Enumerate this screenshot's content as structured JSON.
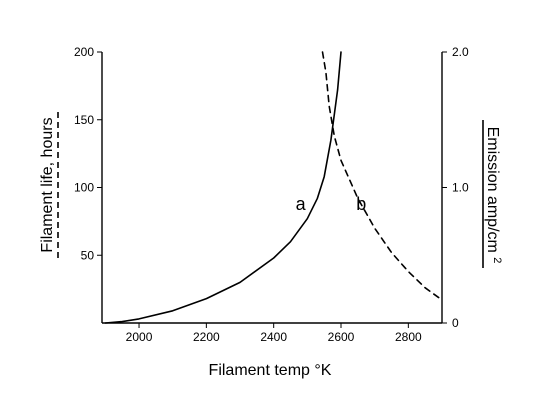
{
  "chart_data": {
    "type": "line",
    "title": "",
    "xlabel": "Filament temp °K",
    "ylabel_left": "Filament life, hours",
    "ylabel_right": "Emission amp/cm",
    "ylabel_right_superscript": "2",
    "xlim": [
      1890,
      2900
    ],
    "ylim_left": [
      0,
      200
    ],
    "ylim_right": [
      0,
      2.0
    ],
    "x_ticks": [
      2000,
      2200,
      2400,
      2600,
      2800
    ],
    "y_left_ticks": [
      50,
      100,
      150,
      200
    ],
    "y_right_ticks": [
      {
        "value": 0,
        "label": "0"
      },
      {
        "value": 1.0,
        "label": "1.0"
      },
      {
        "value": 2.0,
        "label": "2.0"
      }
    ],
    "grid": false,
    "legend": "none",
    "series": [
      {
        "label": "a",
        "axis": "right",
        "style": "solid",
        "points": [
          [
            1900,
            0.0
          ],
          [
            1950,
            0.01
          ],
          [
            2000,
            0.03
          ],
          [
            2100,
            0.09
          ],
          [
            2200,
            0.18
          ],
          [
            2300,
            0.3
          ],
          [
            2400,
            0.48
          ],
          [
            2450,
            0.6
          ],
          [
            2500,
            0.77
          ],
          [
            2530,
            0.92
          ],
          [
            2550,
            1.08
          ],
          [
            2570,
            1.35
          ],
          [
            2590,
            1.72
          ],
          [
            2600,
            2.0
          ]
        ]
      },
      {
        "label": "b",
        "axis": "left",
        "style": "dashed",
        "points": [
          [
            2545,
            200
          ],
          [
            2555,
            185
          ],
          [
            2565,
            160
          ],
          [
            2580,
            138
          ],
          [
            2600,
            120
          ],
          [
            2650,
            92
          ],
          [
            2700,
            70
          ],
          [
            2750,
            52
          ],
          [
            2800,
            38
          ],
          [
            2850,
            26
          ],
          [
            2900,
            17
          ]
        ]
      }
    ],
    "curve_labels": [
      {
        "text": "a",
        "x": 2480,
        "y_left": 88
      },
      {
        "text": "b",
        "x": 2660,
        "y_left": 88
      }
    ]
  }
}
